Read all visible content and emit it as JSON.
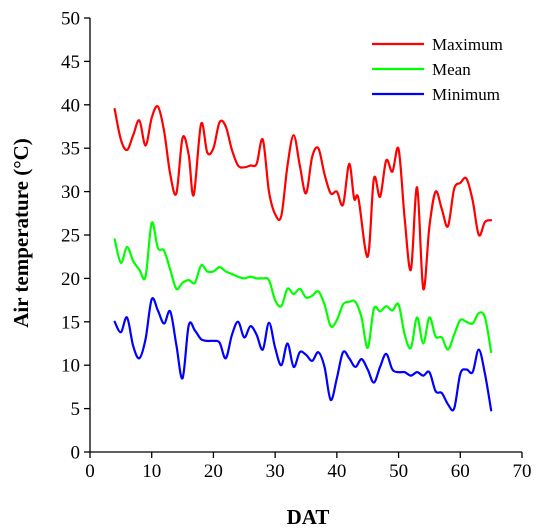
{
  "chart_data": {
    "type": "line",
    "xlabel": "DAT",
    "ylabel": "Air temperature (°C)",
    "xlim": [
      0,
      70
    ],
    "ylim": [
      0,
      50
    ],
    "xticks": [
      0,
      10,
      20,
      30,
      40,
      50,
      60,
      70
    ],
    "yticks": [
      0,
      5,
      10,
      15,
      20,
      25,
      30,
      35,
      40,
      45,
      50
    ],
    "grid": false,
    "legend_position": "top-right",
    "series": [
      {
        "name": "Maximum",
        "color": "#ff0000",
        "points": [
          [
            4,
            39.5
          ],
          [
            5,
            36
          ],
          [
            6,
            34.8
          ],
          [
            7,
            36.5
          ],
          [
            8,
            38.2
          ],
          [
            9,
            35.3
          ],
          [
            10,
            38.5
          ],
          [
            11,
            39.8
          ],
          [
            12,
            37
          ],
          [
            13,
            32
          ],
          [
            14,
            29.8
          ],
          [
            15,
            36.2
          ],
          [
            16,
            34.2
          ],
          [
            16.8,
            29.6
          ],
          [
            18,
            37.8
          ],
          [
            19,
            34.5
          ],
          [
            20,
            35
          ],
          [
            21,
            38
          ],
          [
            22,
            37.5
          ],
          [
            23,
            34.8
          ],
          [
            24,
            33
          ],
          [
            25,
            32.8
          ],
          [
            26,
            33
          ],
          [
            27,
            33.2
          ],
          [
            28,
            36
          ],
          [
            29,
            30
          ],
          [
            30,
            27.4
          ],
          [
            31,
            27.2
          ],
          [
            32,
            33
          ],
          [
            33,
            36.5
          ],
          [
            34,
            33
          ],
          [
            35,
            29.8
          ],
          [
            36,
            34
          ],
          [
            37,
            35
          ],
          [
            38,
            32
          ],
          [
            39,
            29.8
          ],
          [
            40,
            30
          ],
          [
            41,
            28.5
          ],
          [
            42,
            33.2
          ],
          [
            42.8,
            29.2
          ],
          [
            43.5,
            29.2
          ],
          [
            45,
            22.5
          ],
          [
            46,
            31.5
          ],
          [
            47,
            29.4
          ],
          [
            48,
            33.6
          ],
          [
            49,
            32.3
          ],
          [
            50,
            34.9
          ],
          [
            51,
            26.8
          ],
          [
            52,
            21
          ],
          [
            53,
            30.5
          ],
          [
            54,
            18.8
          ],
          [
            55,
            26
          ],
          [
            56,
            30
          ],
          [
            57,
            28
          ],
          [
            58,
            26
          ],
          [
            59,
            30.3
          ],
          [
            60,
            31
          ],
          [
            61,
            31.5
          ],
          [
            62,
            29
          ],
          [
            63,
            25
          ],
          [
            64,
            26.5
          ],
          [
            65,
            26.7
          ]
        ]
      },
      {
        "name": "Mean",
        "color": "#00ff00",
        "points": [
          [
            4,
            24.5
          ],
          [
            5,
            21.8
          ],
          [
            6,
            23.6
          ],
          [
            7,
            22
          ],
          [
            8,
            21
          ],
          [
            9,
            20.2
          ],
          [
            10,
            26.4
          ],
          [
            11,
            23.5
          ],
          [
            12,
            23.2
          ],
          [
            13,
            21
          ],
          [
            14,
            18.8
          ],
          [
            15,
            19.5
          ],
          [
            16,
            19.8
          ],
          [
            17,
            19.5
          ],
          [
            18,
            21.5
          ],
          [
            19,
            20.8
          ],
          [
            20,
            20.8
          ],
          [
            21,
            21.3
          ],
          [
            22,
            20.8
          ],
          [
            23,
            20.5
          ],
          [
            24,
            20.2
          ],
          [
            25,
            20
          ],
          [
            26,
            20.2
          ],
          [
            27,
            20
          ],
          [
            28,
            20
          ],
          [
            29,
            19.8
          ],
          [
            30,
            17.5
          ],
          [
            31,
            16.8
          ],
          [
            32,
            18.8
          ],
          [
            33,
            18.2
          ],
          [
            34,
            18.8
          ],
          [
            35,
            17.8
          ],
          [
            36,
            18
          ],
          [
            37,
            18.5
          ],
          [
            38,
            17
          ],
          [
            39,
            14.5
          ],
          [
            40,
            15.2
          ],
          [
            41,
            17
          ],
          [
            42,
            17.3
          ],
          [
            43,
            17.3
          ],
          [
            44,
            15.5
          ],
          [
            45,
            12
          ],
          [
            46,
            16.5
          ],
          [
            47,
            16.2
          ],
          [
            48,
            16.8
          ],
          [
            49,
            16.3
          ],
          [
            50,
            17
          ],
          [
            51,
            13.5
          ],
          [
            52,
            12
          ],
          [
            53,
            15.5
          ],
          [
            54,
            12.5
          ],
          [
            55,
            15.5
          ],
          [
            56,
            13.3
          ],
          [
            57,
            13.2
          ],
          [
            58,
            11.8
          ],
          [
            59,
            13.5
          ],
          [
            60,
            15.2
          ],
          [
            61,
            15
          ],
          [
            62,
            14.8
          ],
          [
            63,
            16
          ],
          [
            64,
            15.5
          ],
          [
            65,
            11.5
          ]
        ]
      },
      {
        "name": "Minimum",
        "color": "#0000ff",
        "points": [
          [
            4,
            15
          ],
          [
            5,
            13.8
          ],
          [
            6,
            15.5
          ],
          [
            7,
            12.2
          ],
          [
            8,
            10.8
          ],
          [
            9,
            13
          ],
          [
            10,
            17.6
          ],
          [
            11,
            16.3
          ],
          [
            12,
            14.8
          ],
          [
            13,
            16.2
          ],
          [
            14,
            12.3
          ],
          [
            15,
            8.5
          ],
          [
            16,
            14.6
          ],
          [
            17,
            14
          ],
          [
            18,
            13
          ],
          [
            19,
            12.8
          ],
          [
            20,
            12.8
          ],
          [
            21,
            12.6
          ],
          [
            22,
            10.8
          ],
          [
            23,
            13.5
          ],
          [
            24,
            15
          ],
          [
            25,
            13.2
          ],
          [
            26,
            14.5
          ],
          [
            27,
            13.5
          ],
          [
            28,
            11.8
          ],
          [
            29,
            14.9
          ],
          [
            30,
            12
          ],
          [
            31,
            10
          ],
          [
            32,
            12.5
          ],
          [
            33,
            9.8
          ],
          [
            34,
            11.5
          ],
          [
            35,
            11.2
          ],
          [
            36,
            10.5
          ],
          [
            37,
            11.5
          ],
          [
            38,
            9.8
          ],
          [
            39,
            6
          ],
          [
            40,
            8.5
          ],
          [
            41,
            11.5
          ],
          [
            42,
            10.8
          ],
          [
            43,
            9.8
          ],
          [
            44,
            10.7
          ],
          [
            45,
            9.5
          ],
          [
            46,
            8
          ],
          [
            47,
            9.8
          ],
          [
            48,
            11.3
          ],
          [
            49,
            9.5
          ],
          [
            50,
            9.2
          ],
          [
            51,
            9.2
          ],
          [
            52,
            8.8
          ],
          [
            53,
            9.2
          ],
          [
            54,
            8.8
          ],
          [
            55,
            9.2
          ],
          [
            56,
            7
          ],
          [
            57,
            6.8
          ],
          [
            58,
            5.5
          ],
          [
            59,
            5
          ],
          [
            60,
            9
          ],
          [
            61,
            9.5
          ],
          [
            62,
            9.2
          ],
          [
            63,
            11.8
          ],
          [
            64,
            9
          ],
          [
            65,
            4.8
          ]
        ]
      }
    ]
  }
}
